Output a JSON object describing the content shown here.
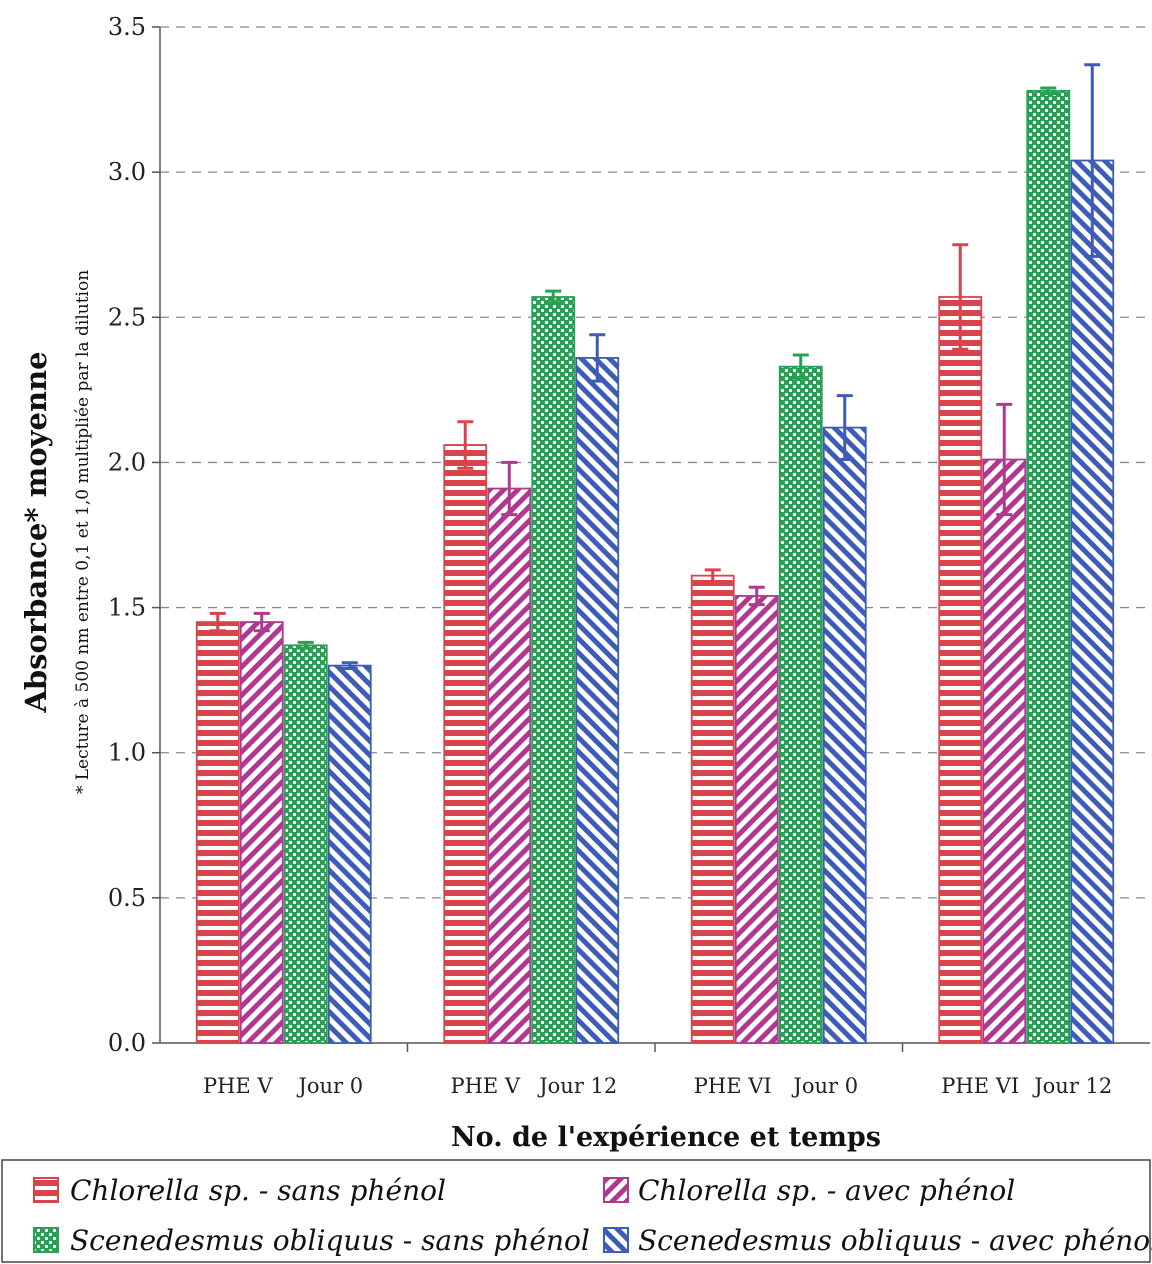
{
  "chart_data": {
    "type": "bar",
    "ylabel": "Absorbance* moyenne",
    "ylabel_note": "* Lecture à 500 nm entre 0,1 et 1,0 multipliée par la dilution",
    "xlabel": "No. de l'expérience et temps",
    "ylim": [
      0,
      3.5
    ],
    "y_ticks": [
      "0.0",
      "0.5",
      "1.0",
      "1.5",
      "2.0",
      "2.5",
      "3.0",
      "3.5"
    ],
    "y_tick_values": [
      0,
      0.5,
      1.0,
      1.5,
      2.0,
      2.5,
      3.0,
      3.5
    ],
    "grid": "horizontal dashed",
    "legend_position": "bottom",
    "groups": [
      {
        "experiment": "PHE V",
        "time": "Jour 0"
      },
      {
        "experiment": "PHE V",
        "time": "Jour 12"
      },
      {
        "experiment": "PHE VI",
        "time": "Jour 0"
      },
      {
        "experiment": "PHE VI",
        "time": "Jour 12"
      }
    ],
    "series": [
      {
        "name": "Chlorella sp. - sans phénol",
        "color": "#d9444c",
        "pattern": "horizontal",
        "values": [
          1.45,
          2.06,
          1.61,
          2.57
        ],
        "errors": [
          0.03,
          0.08,
          0.02,
          0.18
        ]
      },
      {
        "name": "Chlorella sp. - avec phénol",
        "color": "#b0388f",
        "pattern": "diagonal-up",
        "values": [
          1.45,
          1.91,
          1.54,
          2.01
        ],
        "errors": [
          0.03,
          0.09,
          0.03,
          0.19
        ]
      },
      {
        "name": "Scenedesmus obliquus - sans phénol",
        "color": "#2aa055",
        "pattern": "dots",
        "values": [
          1.37,
          2.57,
          2.33,
          3.28
        ],
        "errors": [
          0.01,
          0.02,
          0.04,
          0.01
        ]
      },
      {
        "name": "Scenedesmus obliquus - avec phénol",
        "color": "#3d5cb5",
        "pattern": "diagonal-down",
        "values": [
          1.3,
          2.36,
          2.12,
          3.04
        ],
        "errors": [
          0.01,
          0.08,
          0.11,
          0.33
        ]
      }
    ]
  }
}
